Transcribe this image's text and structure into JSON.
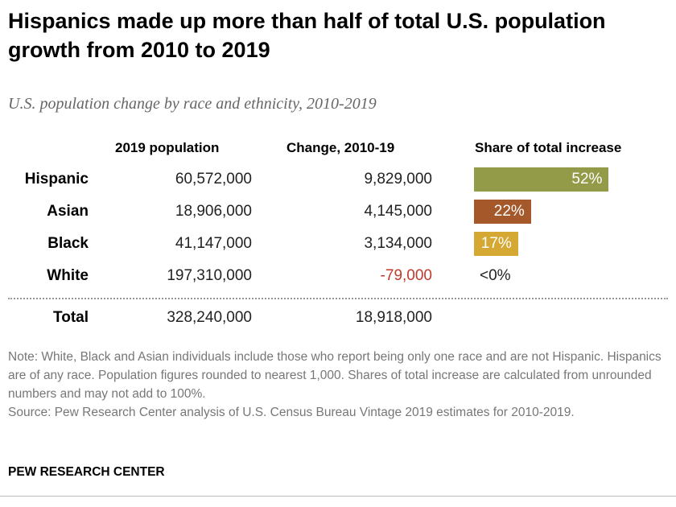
{
  "title": "Hispanics made up more than half of total U.S. population growth from 2010 to 2019",
  "subtitle": "U.S. population change by race and ethnicity, 2010-2019",
  "chart_data": {
    "type": "table",
    "columns": [
      "2019 population",
      "Change, 2010-19",
      "Share of total increase"
    ],
    "rows": [
      {
        "label": "Hispanic",
        "population": "60,572,000",
        "change": "9,829,000",
        "share": 52,
        "share_label": "52%",
        "color": "#949B48"
      },
      {
        "label": "Asian",
        "population": "18,906,000",
        "change": "4,145,000",
        "share": 22,
        "share_label": "22%",
        "color": "#A5582A"
      },
      {
        "label": "Black",
        "population": "41,147,000",
        "change": "3,134,000",
        "share": 17,
        "share_label": "17%",
        "color": "#D4A832"
      },
      {
        "label": "White",
        "population": "197,310,000",
        "change": "-79,000",
        "share": 0,
        "share_label": "<0%",
        "color": "#C0392B"
      }
    ],
    "total": {
      "label": "Total",
      "population": "328,240,000",
      "change": "18,918,000"
    }
  },
  "note": "Note: White, Black and Asian individuals include those who report being only one race and are not Hispanic. Hispanics are of any race. Population figures rounded to nearest 1,000. Shares of total increase are calculated from unrounded numbers and may not add to 100%.",
  "source": "Source: Pew Research Center analysis of U.S. Census Bureau Vintage 2019 estimates for 2010-2019.",
  "brand": "PEW RESEARCH CENTER"
}
